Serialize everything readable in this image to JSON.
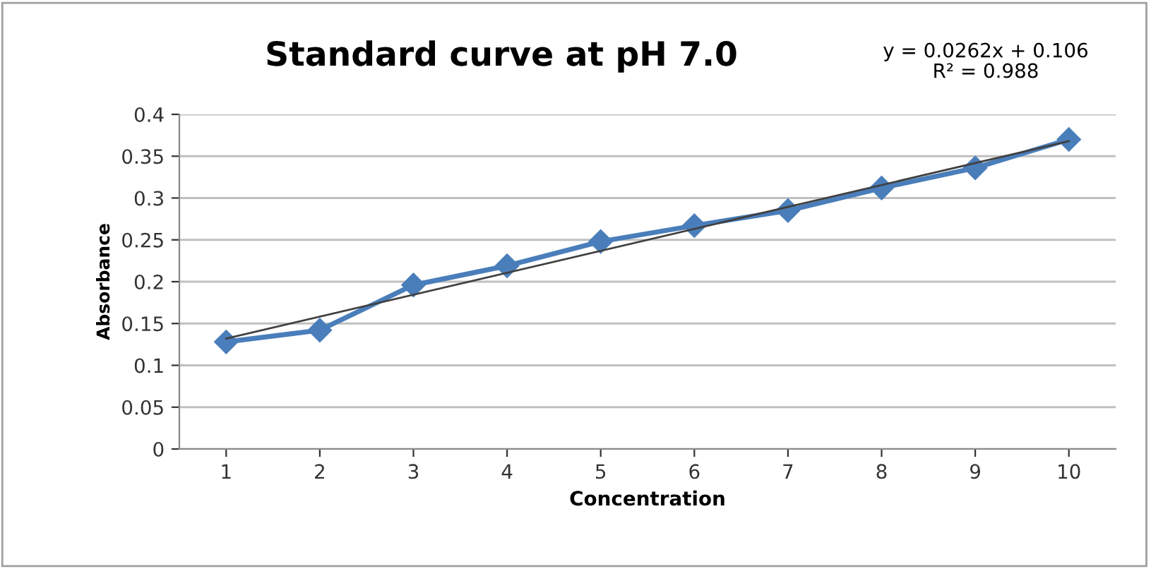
{
  "chart_data": {
    "type": "line",
    "title": "Standard curve at pH 7.0",
    "xlabel": "Concentration",
    "ylabel": "Absorbance",
    "x": [
      1,
      2,
      3,
      4,
      5,
      6,
      7,
      8,
      9,
      10
    ],
    "series": [
      {
        "color": "#4a7ebb",
        "marker": "diamond",
        "values": [
          0.128,
          0.142,
          0.196,
          0.219,
          0.248,
          0.267,
          0.285,
          0.312,
          0.336,
          0.37
        ]
      },
      {
        "color": "#404040",
        "marker": "none",
        "x": [
          1,
          10
        ],
        "values": [
          0.132,
          0.368
        ]
      }
    ],
    "annotations": [
      "y = 0.0262x + 0.106\nR² = 0.988"
    ],
    "xlim": [
      0.5,
      10.5
    ],
    "xticks": [
      1,
      2,
      3,
      4,
      5,
      6,
      7,
      8,
      9,
      10
    ],
    "ylim": [
      0,
      0.4
    ],
    "yticks": [
      0,
      0.05,
      0.1,
      0.15,
      0.2,
      0.25,
      0.3,
      0.35,
      0.4
    ],
    "grid": "y",
    "legend": false
  }
}
